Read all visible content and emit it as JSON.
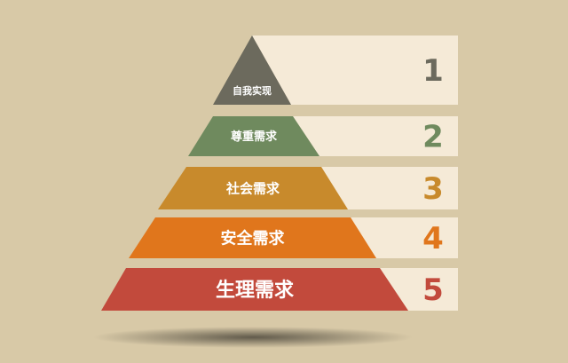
{
  "pyramid": {
    "levels": [
      {
        "label": "自我实现",
        "number": "1",
        "color": "#6c6a5d"
      },
      {
        "label": "尊重需求",
        "number": "2",
        "color": "#6f8a5e"
      },
      {
        "label": "社会需求",
        "number": "3",
        "color": "#c88a2c"
      },
      {
        "label": "安全需求",
        "number": "4",
        "color": "#e0761c"
      },
      {
        "label": "生理需求",
        "number": "5",
        "color": "#c24a3c"
      }
    ],
    "panel_color": "#f5ead7",
    "background_color": "#d8c9a7"
  }
}
